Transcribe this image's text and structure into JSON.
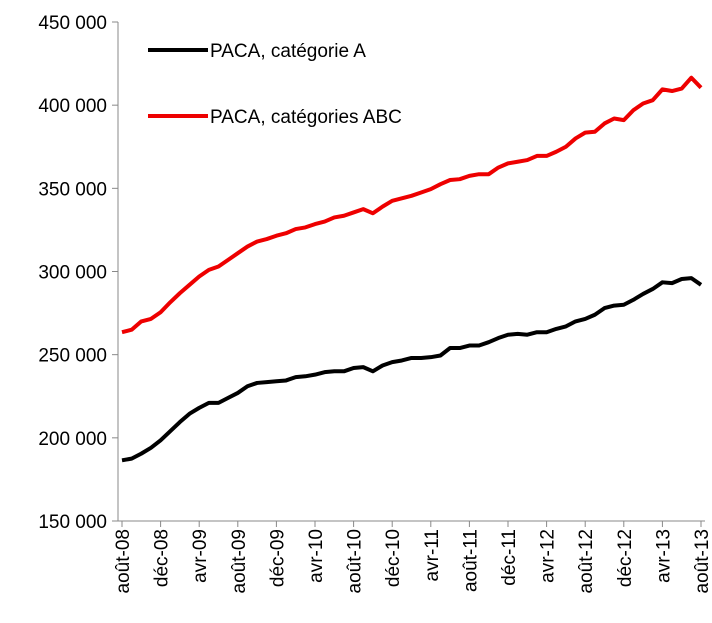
{
  "chart_data": {
    "type": "line",
    "categories": [
      "août-08",
      null,
      null,
      null,
      "déc-08",
      null,
      null,
      null,
      "avr-09",
      null,
      null,
      null,
      "août-09",
      null,
      null,
      null,
      "déc-09",
      null,
      null,
      null,
      "avr-10",
      null,
      null,
      null,
      "août-10",
      null,
      null,
      null,
      "déc-10",
      null,
      null,
      null,
      "avr-11",
      null,
      null,
      null,
      "août-11",
      null,
      null,
      null,
      "déc-11",
      null,
      null,
      null,
      "avr-12",
      null,
      null,
      null,
      "août-12",
      null,
      null,
      null,
      "déc-12",
      null,
      null,
      null,
      "avr-13",
      null,
      null,
      null,
      "août-13"
    ],
    "series": [
      {
        "name": "PACA, catégorie A",
        "color": "#000000",
        "values": [
          186500,
          187500,
          190500,
          194000,
          198500,
          204000,
          209500,
          214500,
          218000,
          221000,
          221000,
          224000,
          227000,
          231000,
          233000,
          233500,
          234000,
          234500,
          236500,
          237000,
          238000,
          239500,
          240000,
          240000,
          242000,
          242500,
          240000,
          243500,
          245500,
          246500,
          248000,
          248000,
          248500,
          249500,
          254000,
          254000,
          255500,
          255500,
          257500,
          260000,
          262000,
          262500,
          262000,
          263500,
          263500,
          265500,
          267000,
          270000,
          271500,
          274000,
          278000,
          279500,
          280000,
          283000,
          286500,
          289500,
          293500,
          293000,
          295500,
          296000,
          292000
        ]
      },
      {
        "name": "PACA, catégories ABC",
        "color": "#ee0000",
        "values": [
          263500,
          265000,
          270000,
          271500,
          275500,
          281500,
          287000,
          292000,
          297000,
          301000,
          303000,
          307000,
          311000,
          315000,
          318000,
          319500,
          321500,
          323000,
          325500,
          326500,
          328500,
          330000,
          332500,
          333500,
          335500,
          337500,
          335000,
          339000,
          342500,
          344000,
          345500,
          347500,
          349500,
          352500,
          355000,
          355500,
          357500,
          358500,
          358500,
          362500,
          365000,
          366000,
          367000,
          369500,
          369500,
          372000,
          375000,
          380000,
          383500,
          384000,
          389000,
          392000,
          391000,
          397000,
          401000,
          403000,
          409500,
          408500,
          410000,
          416500,
          410500
        ]
      }
    ],
    "ylim": [
      150000,
      450000
    ],
    "yticks": [
      {
        "value": 150000,
        "label": "150 000"
      },
      {
        "value": 200000,
        "label": "200 000"
      },
      {
        "value": 250000,
        "label": "250 000"
      },
      {
        "value": 300000,
        "label": "300 000"
      },
      {
        "value": 350000,
        "label": "350 000"
      },
      {
        "value": 400000,
        "label": "400 000"
      },
      {
        "value": 450000,
        "label": "450 000"
      }
    ],
    "legend": "upper-left"
  }
}
